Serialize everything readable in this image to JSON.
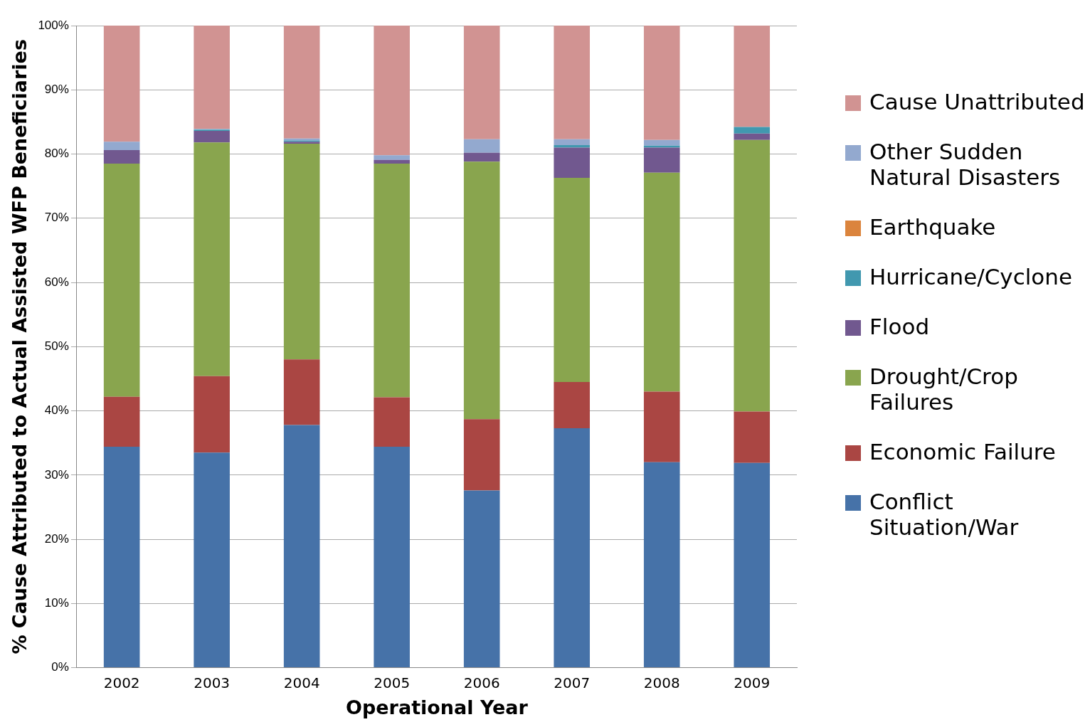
{
  "chart_data": {
    "type": "bar",
    "stacked": true,
    "xlabel": "Operational Year",
    "ylabel": "% Cause Attributed to Actual Assisted WFP Beneficiaries",
    "categories": [
      "2002",
      "2003",
      "2004",
      "2005",
      "2006",
      "2007",
      "2008",
      "2009"
    ],
    "series": [
      {
        "name": "Conflict Situation/War",
        "color": "#4672a8",
        "values": [
          34.4,
          33.5,
          37.8,
          34.4,
          27.6,
          37.3,
          32.0,
          31.9
        ]
      },
      {
        "name": "Economic Failure",
        "color": "#aa4643",
        "values": [
          7.8,
          11.9,
          10.2,
          7.7,
          11.1,
          7.2,
          11.0,
          8.0
        ]
      },
      {
        "name": "Drought/Crop Failures",
        "color": "#89a54e",
        "values": [
          36.3,
          36.4,
          33.6,
          36.4,
          40.1,
          31.8,
          34.1,
          42.3
        ]
      },
      {
        "name": "Flood",
        "color": "#71588f",
        "values": [
          2.1,
          1.8,
          0.3,
          0.6,
          1.4,
          4.7,
          3.9,
          1.0
        ]
      },
      {
        "name": "Hurricane/Cyclone",
        "color": "#4198af",
        "values": [
          0,
          0.2,
          0.2,
          0,
          0,
          0.4,
          0.3,
          1.0
        ]
      },
      {
        "name": "Earthquake",
        "color": "#db843d",
        "values": [
          0,
          0,
          0,
          0,
          0,
          0,
          0,
          0
        ]
      },
      {
        "name": "Other Sudden Natural Disasters",
        "color": "#93a9cf",
        "values": [
          1.3,
          0.1,
          0.3,
          0.7,
          2.1,
          0.9,
          0.9,
          0
        ]
      },
      {
        "name": "Cause Unattributed",
        "color": "#d19392",
        "values": [
          18.1,
          16.1,
          17.6,
          20.2,
          17.7,
          17.7,
          17.8,
          15.8
        ]
      }
    ],
    "ylim": [
      0,
      100
    ],
    "yticks": [
      {
        "value": 0,
        "label": "0%"
      },
      {
        "value": 10,
        "label": "10%"
      },
      {
        "value": 20,
        "label": "20%"
      },
      {
        "value": 30,
        "label": "30%"
      },
      {
        "value": 40,
        "label": "40%"
      },
      {
        "value": 50,
        "label": "50%"
      },
      {
        "value": 60,
        "label": "60%"
      },
      {
        "value": 70,
        "label": "70%"
      },
      {
        "value": 80,
        "label": "80%"
      },
      {
        "value": 90,
        "label": "90%"
      },
      {
        "value": 100,
        "label": "100%"
      }
    ],
    "grid": "y",
    "legend": "right"
  }
}
